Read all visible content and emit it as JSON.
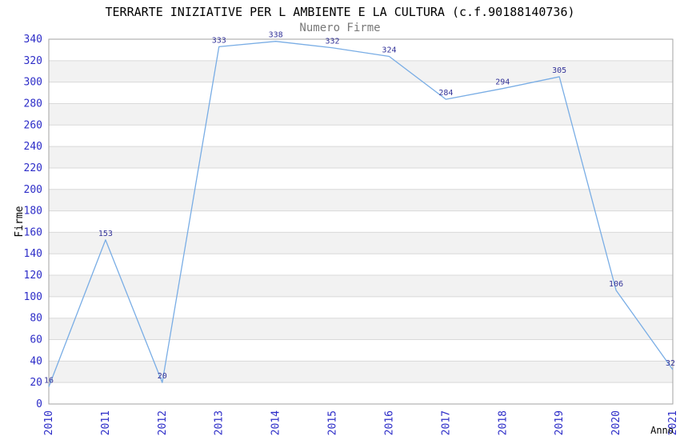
{
  "chart_data": {
    "type": "line",
    "title": "TERRARTE INIZIATIVE PER L AMBIENTE E LA CULTURA (c.f.90188140736)",
    "subtitle": "Numero Firme",
    "xlabel": "Anno",
    "ylabel": "Firme",
    "categories": [
      "2010",
      "2011",
      "2012",
      "2013",
      "2014",
      "2015",
      "2016",
      "2017",
      "2018",
      "2019",
      "2020",
      "2021"
    ],
    "series": [
      {
        "name": "Numero Firme",
        "values": [
          16,
          153,
          20,
          333,
          338,
          332,
          324,
          284,
          294,
          305,
          106,
          32
        ]
      }
    ],
    "ylim": [
      0,
      340
    ],
    "ytick_step": 20,
    "grid": "horizontal-bands",
    "legend": "none",
    "markers": "none",
    "colors": {
      "line": "#79ade5",
      "band": "#f2f2f2",
      "grid": "#d9d9d9",
      "border": "#a3a3a3",
      "tick_label": "#2d2dc8",
      "value_label": "#333399",
      "title": "#000000",
      "subtitle": "#787878",
      "axis_title": "#000000",
      "background": "#ffffff"
    }
  }
}
